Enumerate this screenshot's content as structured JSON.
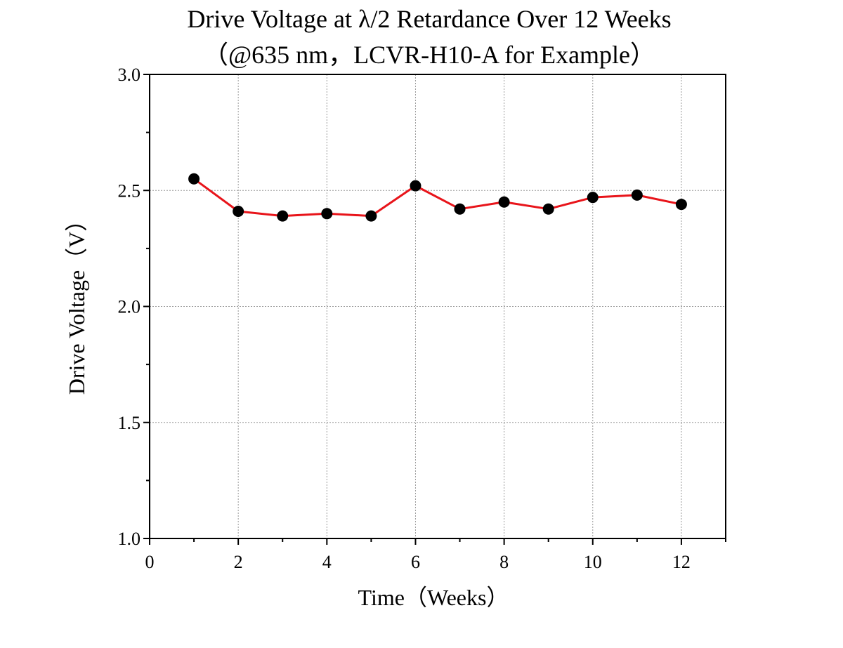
{
  "chart_data": {
    "type": "line",
    "title": "Drive Voltage at λ/2 Retardance Over 12 Weeks",
    "subtitle": "（@635 nm，LCVR-H10-A for Example）",
    "xlabel": "Time（Weeks）",
    "ylabel": "Drive Voltage（V）",
    "xlim": [
      0,
      13
    ],
    "ylim": [
      1.0,
      3.0
    ],
    "x_ticks": [
      0,
      2,
      4,
      6,
      8,
      10,
      12
    ],
    "x_tick_labels": [
      "0",
      "2",
      "4",
      "6",
      "8",
      "10",
      "12"
    ],
    "y_ticks": [
      1.0,
      1.5,
      2.0,
      2.5,
      3.0
    ],
    "y_tick_labels": [
      "1.0",
      "1.5",
      "2.0",
      "2.5",
      "3.0"
    ],
    "grid": true,
    "legend": "none",
    "series": [
      {
        "x": [
          1,
          2,
          3,
          4,
          5,
          6,
          7,
          8,
          9,
          10,
          11,
          12
        ],
        "y": [
          2.55,
          2.41,
          2.39,
          2.4,
          2.39,
          2.52,
          2.42,
          2.45,
          2.42,
          2.47,
          2.48,
          2.44
        ],
        "line_color": "#e8141a",
        "marker_color": "#000000"
      }
    ]
  }
}
